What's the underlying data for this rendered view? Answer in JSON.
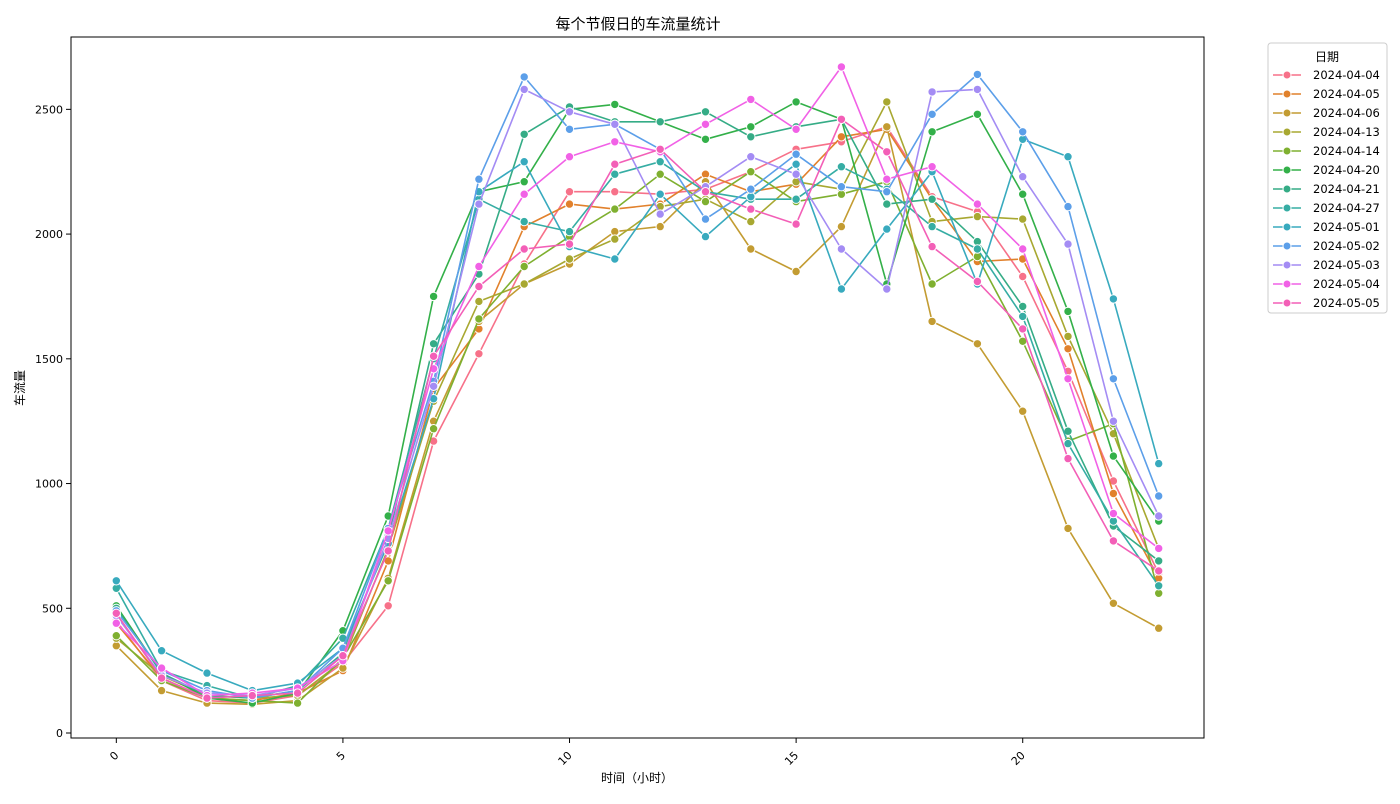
{
  "chart_data": {
    "type": "line",
    "title": "每个节假日的车流量统计",
    "xlabel": "时间（小时）",
    "ylabel": "车流量",
    "xlim": [
      -1,
      24
    ],
    "ylim": [
      -20,
      2790
    ],
    "xticks": [
      0,
      5,
      10,
      15,
      20
    ],
    "yticks": [
      0,
      500,
      1000,
      1500,
      2000,
      2500
    ],
    "grid": false,
    "legend": {
      "title": "日期",
      "placement": "outside-top-right"
    },
    "x": [
      0,
      1,
      2,
      3,
      4,
      5,
      6,
      7,
      8,
      9,
      10,
      11,
      12,
      13,
      14,
      15,
      16,
      17,
      18,
      19,
      20,
      21,
      22,
      23
    ],
    "series": [
      {
        "name": "2024-04-04",
        "color": "#f77189",
        "values": [
          450,
          210,
          130,
          120,
          150,
          280,
          510,
          1170,
          1520,
          1880,
          2170,
          2170,
          2160,
          2180,
          2250,
          2340,
          2370,
          2430,
          2150,
          2090,
          1830,
          1450,
          1010,
          640
        ]
      },
      {
        "name": "2024-04-05",
        "color": "#e1812c",
        "values": [
          440,
          220,
          140,
          130,
          160,
          250,
          690,
          1380,
          1620,
          2030,
          2120,
          2100,
          2120,
          2240,
          2170,
          2200,
          2390,
          2420,
          2140,
          1890,
          1900,
          1540,
          960,
          620
        ]
      },
      {
        "name": "2024-04-06",
        "color": "#c39c32",
        "values": [
          350,
          170,
          120,
          115,
          130,
          260,
          620,
          1250,
          1650,
          1800,
          1880,
          2010,
          2030,
          2210,
          1940,
          1850,
          2030,
          2430,
          1650,
          1560,
          1290,
          820,
          520,
          420
        ]
      },
      {
        "name": "2024-04-13",
        "color": "#a8a831",
        "values": [
          380,
          230,
          150,
          140,
          150,
          290,
          740,
          1330,
          1730,
          1800,
          1900,
          1980,
          2110,
          2140,
          2050,
          2210,
          2180,
          2530,
          2050,
          2070,
          2060,
          1590,
          1200,
          740
        ]
      },
      {
        "name": "2024-04-14",
        "color": "#7fb030",
        "values": [
          390,
          210,
          140,
          130,
          120,
          300,
          610,
          1220,
          1660,
          1870,
          1990,
          2100,
          2240,
          2130,
          2250,
          2130,
          2160,
          2210,
          1800,
          1910,
          1570,
          1170,
          1240,
          560
        ]
      },
      {
        "name": "2024-04-20",
        "color": "#33b049",
        "values": [
          510,
          240,
          140,
          120,
          160,
          410,
          870,
          1750,
          2170,
          2210,
          2500,
          2520,
          2450,
          2380,
          2430,
          2530,
          2460,
          1800,
          2410,
          2480,
          2160,
          1690,
          1110,
          850
        ]
      },
      {
        "name": "2024-04-21",
        "color": "#35ac86",
        "values": [
          500,
          240,
          150,
          140,
          170,
          320,
          780,
          1560,
          1840,
          2400,
          2510,
          2450,
          2450,
          2490,
          2390,
          2430,
          2460,
          2120,
          2140,
          1970,
          1710,
          1210,
          830,
          690
        ]
      },
      {
        "name": "2024-04-27",
        "color": "#36ada4",
        "values": [
          580,
          250,
          190,
          140,
          190,
          380,
          820,
          1500,
          2140,
          2050,
          2010,
          2240,
          2290,
          2170,
          2140,
          2140,
          2270,
          2180,
          2030,
          1940,
          1670,
          1160,
          850,
          590
        ]
      },
      {
        "name": "2024-05-01",
        "color": "#38aabe",
        "values": [
          610,
          330,
          240,
          170,
          200,
          340,
          760,
          1340,
          2170,
          2290,
          1950,
          1900,
          2160,
          1990,
          2150,
          2280,
          1780,
          2020,
          2250,
          1800,
          2380,
          2310,
          1740,
          1080
        ]
      },
      {
        "name": "2024-05-02",
        "color": "#5c9fe9",
        "values": [
          490,
          250,
          170,
          140,
          170,
          340,
          820,
          1410,
          2220,
          2630,
          2420,
          2440,
          2340,
          2060,
          2180,
          2320,
          2190,
          2170,
          2480,
          2640,
          2410,
          2110,
          1420,
          950
        ]
      },
      {
        "name": "2024-05-03",
        "color": "#a48cf4",
        "values": [
          470,
          230,
          160,
          150,
          180,
          310,
          780,
          1390,
          2120,
          2580,
          2490,
          2440,
          2080,
          2190,
          2310,
          2240,
          1940,
          1780,
          2570,
          2580,
          2230,
          1960,
          1250,
          870
        ]
      },
      {
        "name": "2024-05-04",
        "color": "#f161e6",
        "values": [
          440,
          260,
          150,
          160,
          180,
          290,
          810,
          1460,
          1870,
          2160,
          2310,
          2370,
          2330,
          2440,
          2540,
          2420,
          2670,
          2220,
          2270,
          2120,
          1940,
          1420,
          880,
          740
        ]
      },
      {
        "name": "2024-05-05",
        "color": "#f35fb7",
        "values": [
          480,
          220,
          140,
          150,
          160,
          310,
          730,
          1510,
          1790,
          1940,
          1960,
          2280,
          2340,
          2170,
          2100,
          2040,
          2460,
          2330,
          1950,
          1810,
          1620,
          1100,
          770,
          650
        ]
      }
    ]
  }
}
